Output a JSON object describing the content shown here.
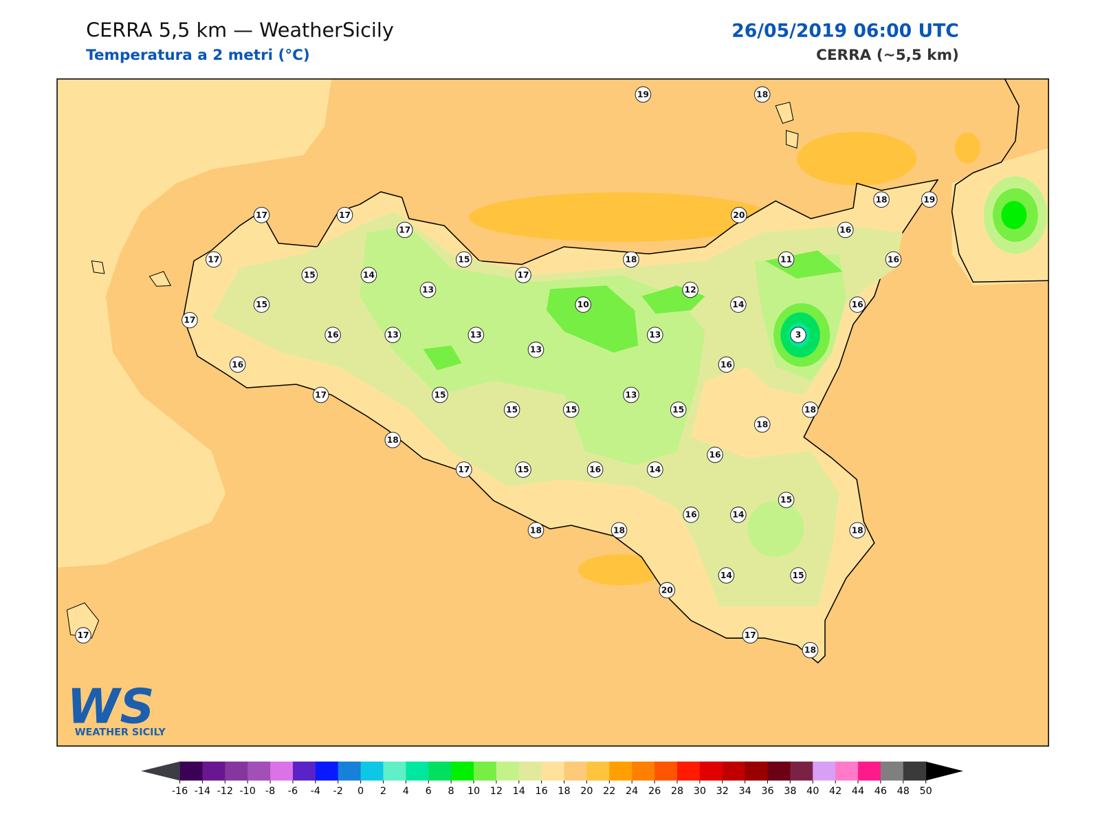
{
  "header": {
    "title": "CERRA 5,5 km — WeatherSicily",
    "subtitle": "Temperatura a 2 metri (°C)",
    "date": "26/05/2019 06:00 UTC",
    "model": "CERRA (~5,5 km)"
  },
  "stations": [
    19,
    18,
    17,
    17,
    17,
    20,
    18,
    19,
    17,
    15,
    14,
    15,
    17,
    18,
    16,
    11,
    16,
    15,
    13,
    10,
    12,
    14,
    16,
    17,
    16,
    13,
    13,
    13,
    13,
    3,
    16,
    16,
    17,
    15,
    15,
    15,
    13,
    15,
    18,
    18,
    18,
    16,
    17,
    15,
    16,
    14,
    15,
    16,
    14,
    18,
    18,
    18,
    20,
    14,
    15,
    17,
    18,
    17
  ],
  "colorbar": {
    "ticks": [
      -16,
      -14,
      -12,
      -10,
      -8,
      -6,
      -4,
      -2,
      0,
      2,
      4,
      6,
      8,
      10,
      12,
      14,
      16,
      18,
      20,
      22,
      24,
      26,
      28,
      30,
      32,
      34,
      36,
      38,
      40,
      42,
      44,
      46,
      48,
      50
    ],
    "colors": [
      "#3d0057",
      "#6a1690",
      "#85369f",
      "#a24fb8",
      "#dc72e8",
      "#5a23c7",
      "#0a1aff",
      "#1780d8",
      "#0dc8e4",
      "#5ff0c8",
      "#00e8a0",
      "#00e060",
      "#00f000",
      "#77ee44",
      "#c4f28a",
      "#e1ea9b",
      "#fee29c",
      "#fdca79",
      "#ffc33d",
      "#ffa000",
      "#ff8000",
      "#ff5500",
      "#ff1a00",
      "#e00000",
      "#c00000",
      "#9a0000",
      "#6d0015",
      "#7c2146",
      "#d7a0f5",
      "#ff7ac8",
      "#ff1a8c",
      "#7f7f7f",
      "#3a3a3a"
    ]
  },
  "logo": {
    "mark": "WS",
    "text": "WEATHER SICILY"
  }
}
